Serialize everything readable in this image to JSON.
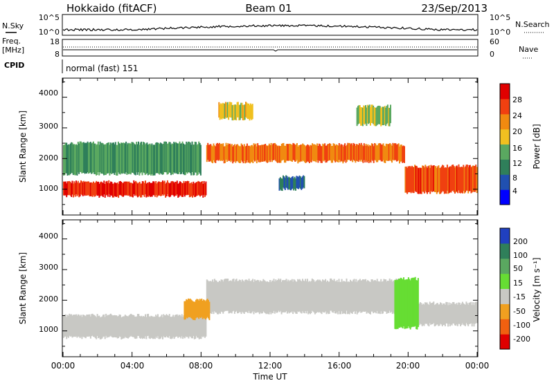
{
  "header": {
    "station": "Hokkaido (fitACF)",
    "beam": "Beam 01",
    "date": "23/Sep/2013"
  },
  "noise_panel": {
    "left_label": "N.Sky",
    "right_label": "N.Search",
    "left_ticks": [
      "10^5",
      "10^0"
    ],
    "right_ticks": [
      "10^5",
      "10^0"
    ]
  },
  "freq_panel": {
    "left_label_line1": "Freq.",
    "left_label_line2": "[MHz]",
    "left_ticks": [
      "18",
      "8"
    ],
    "right_label": "Nave",
    "right_ticks": [
      "60",
      "0"
    ]
  },
  "cpid_panel": {
    "label": "CPID",
    "text": "normal (fast) 151"
  },
  "power_panel": {
    "ylabel": "Slant Range [km]",
    "yticks": [
      "4000",
      "3000",
      "2000",
      "1000"
    ],
    "colorbar_label": "Power [dB]",
    "colorbar_ticks": [
      "28",
      "24",
      "20",
      "16",
      "12",
      "8",
      "4"
    ],
    "colors": [
      "#0000ff",
      "#2050b0",
      "#2f7f5a",
      "#5aa860",
      "#f0c020",
      "#f08a10",
      "#f04010",
      "#e00000"
    ]
  },
  "velocity_panel": {
    "ylabel": "Slant Range [km]",
    "yticks": [
      "4000",
      "3000",
      "2000",
      "1000"
    ],
    "colorbar_label": "Velocity [m s⁻¹]",
    "colorbar_ticks": [
      "200",
      "100",
      "50",
      "15",
      "-15",
      "-50",
      "-100",
      "-200"
    ],
    "colors": [
      "#2040c0",
      "#2f7f5a",
      "#5aa860",
      "#66dd33",
      "#c8c8c4",
      "#f0a020",
      "#f06010",
      "#e00000"
    ]
  },
  "x_axis": {
    "ticks": [
      "00:00",
      "04:00",
      "08:00",
      "12:00",
      "16:00",
      "20:00",
      "00:00"
    ],
    "label": "Time UT"
  },
  "chart_data": {
    "type": "heatmap",
    "x_range_hours": [
      0,
      24
    ],
    "y_range_km": [
      180,
      4600
    ],
    "power_db_range": [
      0,
      32
    ],
    "velocity_range": [
      -250,
      250
    ],
    "power_features": [
      {
        "t": [
          0,
          8.3
        ],
        "km": [
          780,
          1230
        ],
        "db": 28
      },
      {
        "t": [
          8.3,
          19.8
        ],
        "km": [
          1900,
          2450
        ],
        "db": 24
      },
      {
        "t": [
          19.8,
          24
        ],
        "km": [
          900,
          1750
        ],
        "db": 26
      },
      {
        "t": [
          0,
          8
        ],
        "km": [
          1500,
          2500
        ],
        "db": 12
      },
      {
        "t": [
          12.5,
          14
        ],
        "km": [
          1000,
          1400
        ],
        "db": 8
      },
      {
        "t": [
          9,
          11
        ],
        "km": [
          3300,
          3800
        ],
        "db": 18
      },
      {
        "t": [
          17,
          19
        ],
        "km": [
          3100,
          3700
        ],
        "db": 16
      }
    ],
    "velocity_features": [
      {
        "t": [
          0,
          8.3
        ],
        "km": [
          780,
          1500
        ],
        "v": 0
      },
      {
        "t": [
          8.3,
          19.5
        ],
        "km": [
          1600,
          2650
        ],
        "v": 0
      },
      {
        "t": [
          19.5,
          24
        ],
        "km": [
          1200,
          1900
        ],
        "v": 0
      },
      {
        "t": [
          19.2,
          20.6
        ],
        "km": [
          1100,
          2700
        ],
        "v": 25
      },
      {
        "t": [
          7,
          8.5
        ],
        "km": [
          1400,
          2000
        ],
        "v": -40
      }
    ]
  }
}
